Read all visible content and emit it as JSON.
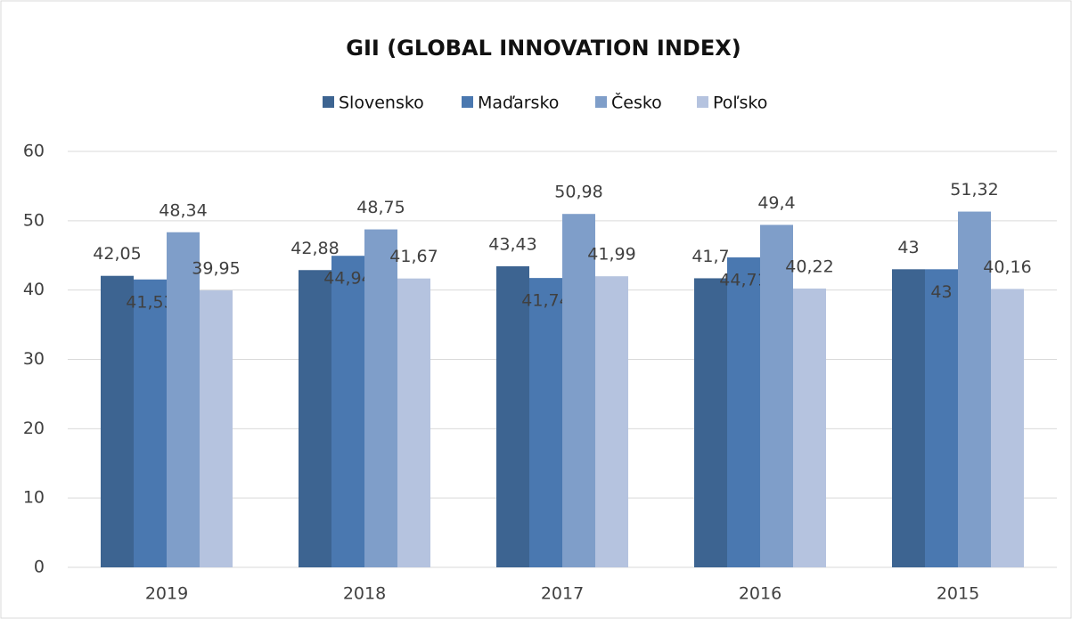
{
  "chart_data": {
    "type": "bar",
    "title": "GII (GLOBAL INNOVATION INDEX)",
    "categories": [
      "2019",
      "2018",
      "2017",
      "2016",
      "2015"
    ],
    "series": [
      {
        "name": "Slovensko",
        "color": "#3d6491",
        "values": [
          42.05,
          42.88,
          43.43,
          41.7,
          43
        ],
        "value_labels": [
          "42,05",
          "42,88",
          "43,43",
          "41,7",
          "43"
        ]
      },
      {
        "name": "Maďarsko",
        "color": "#4a78b0",
        "values": [
          41.53,
          44.94,
          41.74,
          44.71,
          43
        ],
        "value_labels": [
          "41,53",
          "44,94",
          "41,74",
          "44,71",
          "43"
        ]
      },
      {
        "name": "Česko",
        "color": "#7f9ec9",
        "values": [
          48.34,
          48.75,
          50.98,
          49.4,
          51.32
        ],
        "value_labels": [
          "48,34",
          "48,75",
          "50,98",
          "49,4",
          "51,32"
        ]
      },
      {
        "name": "Poľsko",
        "color": "#b5c3df",
        "values": [
          39.95,
          41.67,
          41.99,
          40.22,
          40.16
        ],
        "value_labels": [
          "39,95",
          "41,67",
          "41,99",
          "40,22",
          "40,16"
        ]
      }
    ],
    "ylim": [
      0,
      60
    ],
    "yticks": [
      0,
      10,
      20,
      30,
      40,
      50,
      60
    ],
    "grid": true,
    "legend": "top"
  }
}
